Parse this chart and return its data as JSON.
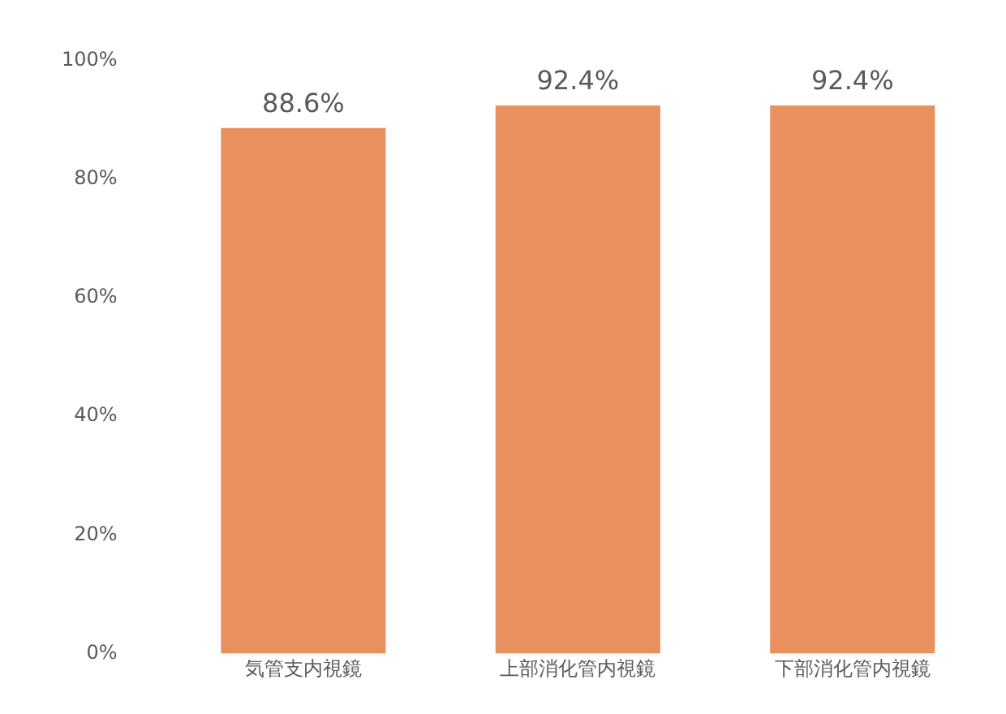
{
  "chart_data": {
    "type": "bar",
    "categories": [
      "気管支内視鏡",
      "上部消化管内視鏡",
      "下部消化管内視鏡"
    ],
    "values": [
      88.6,
      92.4,
      92.4
    ],
    "color": "#e8915f",
    "value_labels": [
      "88.6%",
      "92.4%",
      "92.4%"
    ],
    "ylim": [
      0,
      100
    ],
    "yticks": [
      {
        "value": 0,
        "label": "0%"
      },
      {
        "value": 20,
        "label": "20%"
      },
      {
        "value": 40,
        "label": "40%"
      },
      {
        "value": 60,
        "label": "60%"
      },
      {
        "value": 80,
        "label": "80%"
      },
      {
        "value": 100,
        "label": "100%"
      }
    ],
    "grid": false,
    "legend": false
  }
}
